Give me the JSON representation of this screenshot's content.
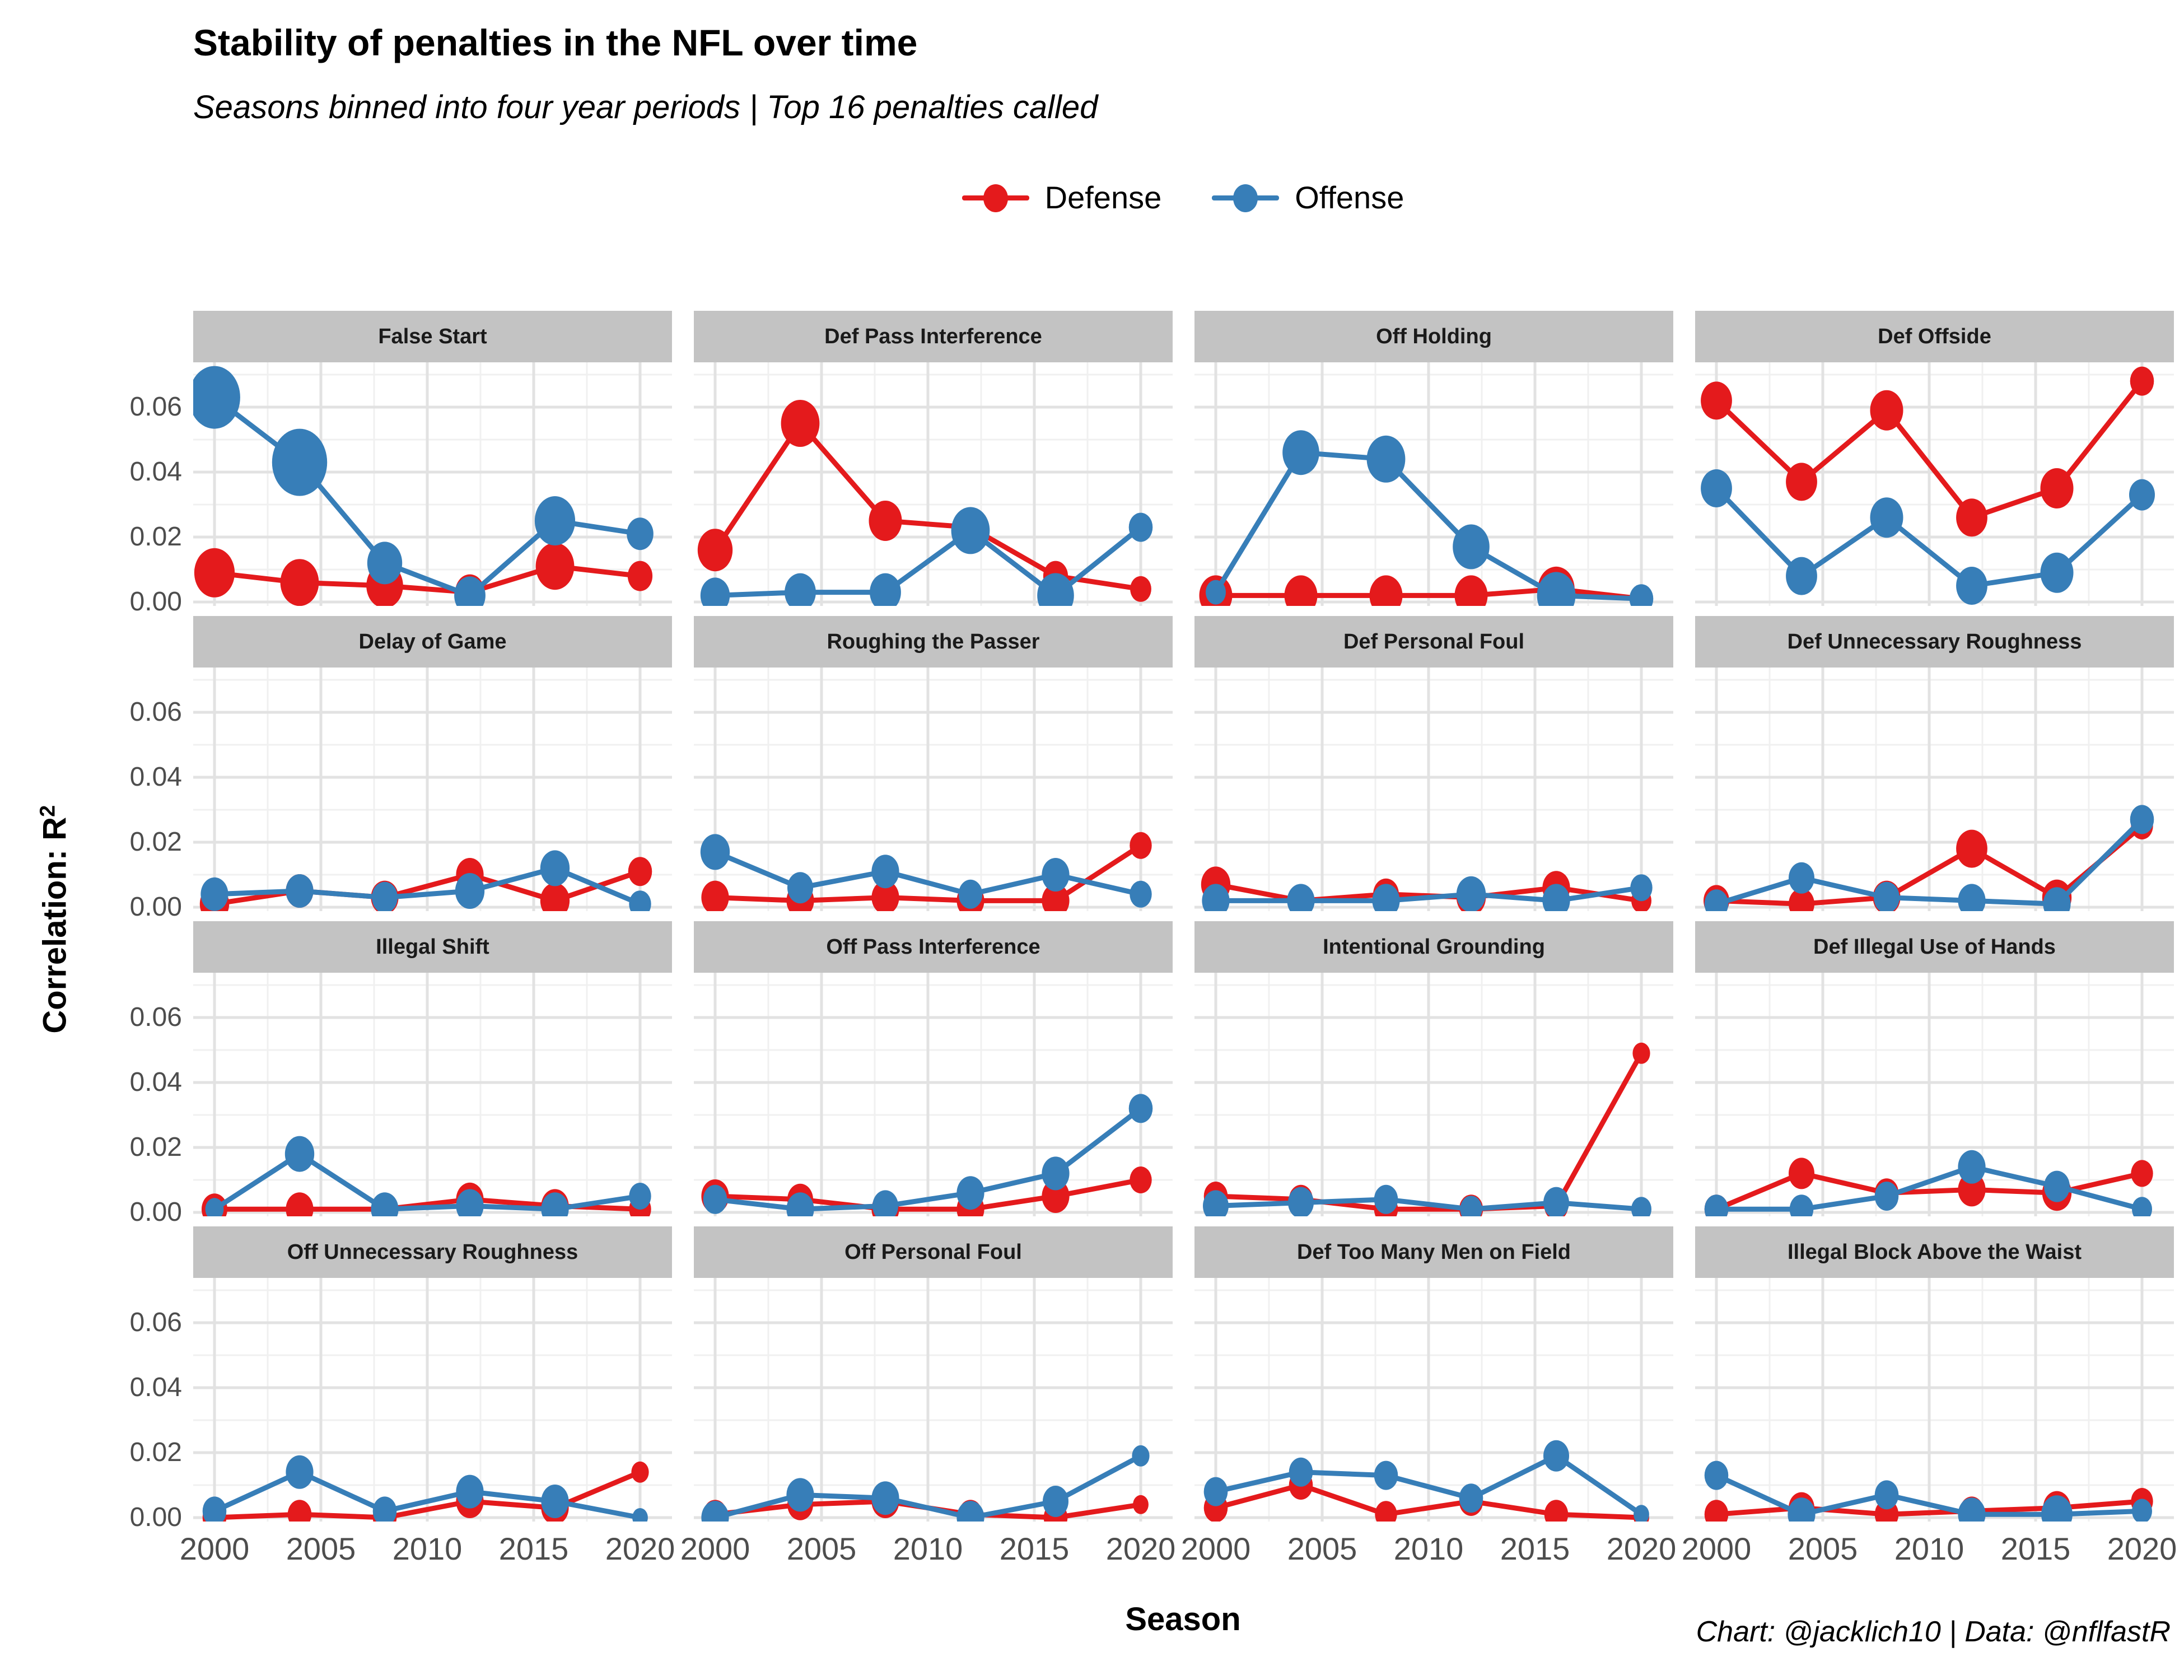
{
  "title": "Stability of penalties in the NFL over time",
  "subtitle": "Seasons binned into four year periods | Top 16 penalties called",
  "caption": "Chart: @jacklich10 | Data: @nflfastR",
  "legend": {
    "items": [
      {
        "label": "Defense",
        "color": "#e41a1c"
      },
      {
        "label": "Offense",
        "color": "#377eb8"
      }
    ]
  },
  "axes": {
    "x_title": "Season",
    "y_title": "Correlation: R",
    "y_title_sup": "2",
    "x_tick_labels": [
      "2000",
      "2005",
      "2010",
      "2015",
      "2020"
    ],
    "y_tick_labels": [
      "0.06",
      "0.04",
      "0.02",
      "0.00"
    ]
  },
  "chart_data": {
    "type": "line",
    "x": [
      2000,
      2004,
      2008,
      2012,
      2016,
      2020
    ],
    "x_ticks": [
      2000,
      2005,
      2010,
      2015,
      2020
    ],
    "x_minor_ticks": [
      2002.5,
      2007.5,
      2012.5,
      2017.5
    ],
    "y_ticks": [
      0.0,
      0.02,
      0.04,
      0.06
    ],
    "y_minor_ticks": [
      0.01,
      0.03,
      0.05,
      0.07
    ],
    "x_range": [
      1999,
      2021.5
    ],
    "y_range": [
      0,
      0.075
    ],
    "xlabel": "Season",
    "ylabel": "Correlation: R2",
    "legend_position": "top",
    "grid": true,
    "series_names": [
      "Defense",
      "Offense"
    ],
    "series_colors": {
      "Defense": "#e41a1c",
      "Offense": "#377eb8"
    },
    "point_size_note": "point radius px, scaled by penalty count",
    "facets": [
      {
        "title": "False Start",
        "defense": {
          "y": [
            0.009,
            0.006,
            0.005,
            0.003,
            0.011,
            0.008
          ],
          "r": [
            44,
            42,
            40,
            32,
            42,
            27
          ]
        },
        "offense": {
          "y": [
            0.063,
            0.043,
            0.012,
            0.002,
            0.025,
            0.021
          ],
          "r": [
            56,
            60,
            38,
            34,
            44,
            29
          ]
        }
      },
      {
        "title": "Def Pass Interference",
        "defense": {
          "y": [
            0.016,
            0.055,
            0.025,
            0.023,
            0.008,
            0.004
          ],
          "r": [
            38,
            42,
            36,
            34,
            27,
            23
          ]
        },
        "offense": {
          "y": [
            0.002,
            0.003,
            0.003,
            0.022,
            0.002,
            0.023
          ],
          "r": [
            32,
            34,
            34,
            42,
            40,
            26
          ]
        }
      },
      {
        "title": "Off Holding",
        "defense": {
          "y": [
            0.002,
            0.002,
            0.002,
            0.002,
            0.004,
            0.001
          ],
          "r": [
            36,
            36,
            36,
            36,
            40,
            19
          ]
        },
        "offense": {
          "y": [
            0.003,
            0.046,
            0.044,
            0.017,
            0.002,
            0.001
          ],
          "r": [
            22,
            40,
            42,
            40,
            42,
            26
          ]
        }
      },
      {
        "title": "Def Offside",
        "defense": {
          "y": [
            0.062,
            0.037,
            0.059,
            0.026,
            0.035,
            0.068
          ],
          "r": [
            34,
            34,
            36,
            34,
            36,
            26
          ]
        },
        "offense": {
          "y": [
            0.035,
            0.008,
            0.026,
            0.005,
            0.009,
            0.033
          ],
          "r": [
            34,
            34,
            36,
            34,
            36,
            28
          ]
        }
      },
      {
        "title": "Delay of Game",
        "defense": {
          "y": [
            0.001,
            0.005,
            0.003,
            0.01,
            0.002,
            0.011
          ],
          "r": [
            32,
            30,
            30,
            30,
            32,
            26
          ]
        },
        "offense": {
          "y": [
            0.004,
            0.005,
            0.003,
            0.005,
            0.012,
            0.001
          ],
          "r": [
            30,
            30,
            28,
            32,
            32,
            24
          ]
        }
      },
      {
        "title": "Roughing the Passer",
        "defense": {
          "y": [
            0.003,
            0.002,
            0.003,
            0.002,
            0.002,
            0.019
          ],
          "r": [
            30,
            30,
            30,
            30,
            30,
            24
          ]
        },
        "offense": {
          "y": [
            0.017,
            0.006,
            0.011,
            0.004,
            0.01,
            0.004
          ],
          "r": [
            32,
            28,
            30,
            26,
            30,
            24
          ]
        }
      },
      {
        "title": "Def Personal Foul",
        "defense": {
          "y": [
            0.007,
            0.002,
            0.004,
            0.003,
            0.006,
            0.002
          ],
          "r": [
            32,
            26,
            28,
            32,
            30,
            22
          ]
        },
        "offense": {
          "y": [
            0.002,
            0.002,
            0.002,
            0.004,
            0.002,
            0.006
          ],
          "r": [
            30,
            30,
            30,
            32,
            30,
            24
          ]
        }
      },
      {
        "title": "Def Unnecessary Roughness",
        "defense": {
          "y": [
            0.002,
            0.001,
            0.003,
            0.018,
            0.003,
            0.025
          ],
          "r": [
            28,
            28,
            30,
            34,
            32,
            24
          ]
        },
        "offense": {
          "y": [
            0.001,
            0.009,
            0.003,
            0.002,
            0.001,
            0.027
          ],
          "r": [
            26,
            28,
            28,
            30,
            30,
            26
          ]
        }
      },
      {
        "title": "Illegal Shift",
        "defense": {
          "y": [
            0.001,
            0.001,
            0.001,
            0.004,
            0.002,
            0.001
          ],
          "r": [
            28,
            30,
            28,
            30,
            30,
            24
          ]
        },
        "offense": {
          "y": [
            0.001,
            0.018,
            0.001,
            0.002,
            0.001,
            0.005
          ],
          "r": [
            20,
            32,
            30,
            30,
            30,
            24
          ]
        }
      },
      {
        "title": "Off Pass Interference",
        "defense": {
          "y": [
            0.005,
            0.004,
            0.001,
            0.001,
            0.005,
            0.01
          ],
          "r": [
            30,
            28,
            30,
            30,
            30,
            24
          ]
        },
        "offense": {
          "y": [
            0.004,
            0.001,
            0.002,
            0.006,
            0.012,
            0.032
          ],
          "r": [
            26,
            30,
            28,
            30,
            30,
            26
          ]
        }
      },
      {
        "title": "Intentional Grounding",
        "defense": {
          "y": [
            0.005,
            0.004,
            0.001,
            0.001,
            0.002,
            0.049
          ],
          "r": [
            26,
            26,
            26,
            26,
            26,
            19
          ]
        },
        "offense": {
          "y": [
            0.002,
            0.003,
            0.004,
            0.001,
            0.003,
            0.001
          ],
          "r": [
            28,
            28,
            26,
            24,
            28,
            22
          ]
        }
      },
      {
        "title": "Def Illegal Use of Hands",
        "defense": {
          "y": [
            0.001,
            0.012,
            0.006,
            0.007,
            0.006,
            0.012
          ],
          "r": [
            26,
            28,
            26,
            30,
            32,
            24
          ]
        },
        "offense": {
          "y": [
            0.001,
            0.001,
            0.005,
            0.014,
            0.008,
            0.001
          ],
          "r": [
            26,
            26,
            26,
            30,
            28,
            22
          ]
        }
      },
      {
        "title": "Off Unnecessary Roughness",
        "defense": {
          "y": [
            0.0,
            0.001,
            0.0,
            0.005,
            0.003,
            0.014
          ],
          "r": [
            26,
            26,
            26,
            30,
            30,
            19
          ]
        },
        "offense": {
          "y": [
            0.002,
            0.014,
            0.002,
            0.008,
            0.005,
            0.0
          ],
          "r": [
            26,
            30,
            26,
            30,
            30,
            17
          ]
        }
      },
      {
        "title": "Off Personal Foul",
        "defense": {
          "y": [
            0.001,
            0.004,
            0.005,
            0.001,
            0.0,
            0.004
          ],
          "r": [
            26,
            28,
            30,
            26,
            26,
            17
          ]
        },
        "offense": {
          "y": [
            0.0,
            0.007,
            0.006,
            0.0,
            0.005,
            0.019
          ],
          "r": [
            30,
            30,
            30,
            30,
            28,
            19
          ]
        }
      },
      {
        "title": "Def Too Many Men on Field",
        "defense": {
          "y": [
            0.003,
            0.01,
            0.001,
            0.005,
            0.001,
            0.0
          ],
          "r": [
            26,
            26,
            24,
            26,
            26,
            17
          ]
        },
        "offense": {
          "y": [
            0.008,
            0.014,
            0.013,
            0.006,
            0.019,
            0.001
          ],
          "r": [
            26,
            26,
            26,
            26,
            28,
            17
          ]
        }
      },
      {
        "title": "Illegal Block Above the Waist",
        "defense": {
          "y": [
            0.001,
            0.003,
            0.001,
            0.002,
            0.003,
            0.005
          ],
          "r": [
            26,
            28,
            26,
            26,
            30,
            24
          ]
        },
        "offense": {
          "y": [
            0.013,
            0.001,
            0.007,
            0.001,
            0.001,
            0.002
          ],
          "r": [
            26,
            30,
            26,
            30,
            34,
            22
          ]
        }
      }
    ]
  }
}
